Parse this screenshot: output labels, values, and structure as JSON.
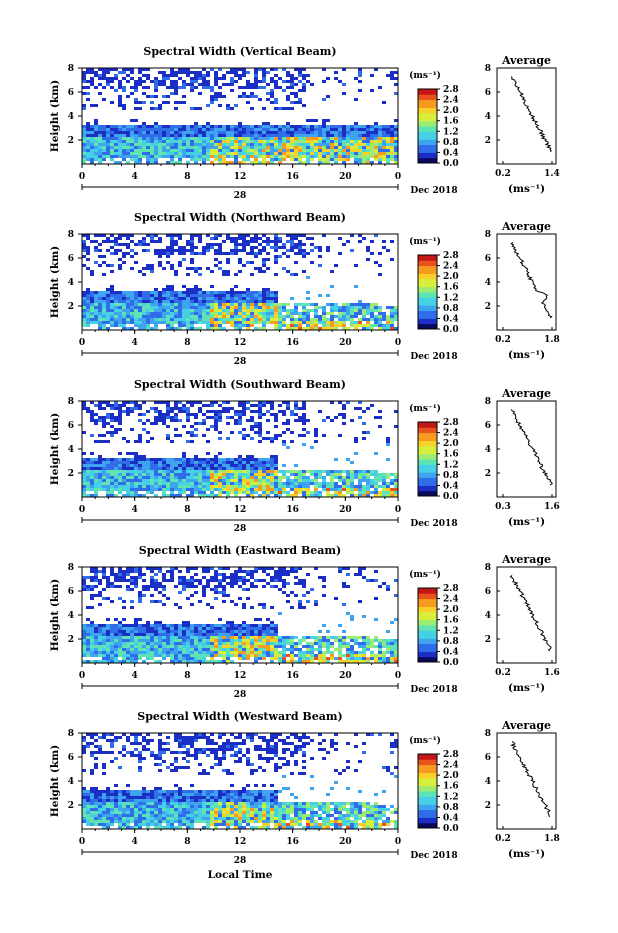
{
  "chart_data": [
    {
      "type": "heatmap",
      "title": "Spectral Width (Vertical Beam)",
      "ylabel": "Height (km)",
      "x_ticks": [
        "0",
        "4",
        "8",
        "12",
        "16",
        "20",
        "0"
      ],
      "y_ticks": [
        "2",
        "4",
        "6",
        "8"
      ],
      "date_day": "28",
      "date_label": "Dec 2018",
      "colorbar": {
        "unit": "(ms⁻¹)",
        "ticks": [
          "0.0",
          "0.4",
          "0.8",
          "1.2",
          "1.6",
          "2.0",
          "2.4",
          "2.8"
        ]
      },
      "average": {
        "title": "Average",
        "xlabel": "(ms⁻¹)",
        "x_ticks": [
          "0.2",
          "1.4"
        ],
        "y_ticks": [
          "2",
          "4",
          "6",
          "8"
        ]
      }
    },
    {
      "type": "heatmap",
      "title": "Spectral Width (Northward Beam)",
      "ylabel": "Height (km)",
      "x_ticks": [
        "0",
        "4",
        "8",
        "12",
        "16",
        "20",
        "0"
      ],
      "y_ticks": [
        "2",
        "4",
        "6",
        "8"
      ],
      "date_day": "28",
      "date_label": "Dec 2018",
      "colorbar": {
        "unit": "(ms⁻¹)",
        "ticks": [
          "0.0",
          "0.4",
          "0.8",
          "1.2",
          "1.6",
          "2.0",
          "2.4",
          "2.8"
        ]
      },
      "average": {
        "title": "Average",
        "xlabel": "(ms⁻¹)",
        "x_ticks": [
          "0.2",
          "1.8"
        ],
        "y_ticks": [
          "2",
          "4",
          "6",
          "8"
        ]
      }
    },
    {
      "type": "heatmap",
      "title": "Spectral Width (Southward Beam)",
      "ylabel": "Height (km)",
      "x_ticks": [
        "0",
        "4",
        "8",
        "12",
        "16",
        "20",
        "0"
      ],
      "y_ticks": [
        "2",
        "4",
        "6",
        "8"
      ],
      "date_day": "28",
      "date_label": "Dec 2018",
      "colorbar": {
        "unit": "(ms⁻¹)",
        "ticks": [
          "0.0",
          "0.4",
          "0.8",
          "1.2",
          "1.6",
          "2.0",
          "2.4",
          "2.8"
        ]
      },
      "average": {
        "title": "Average",
        "xlabel": "(ms⁻¹)",
        "x_ticks": [
          "0.3",
          "1.6"
        ],
        "y_ticks": [
          "2",
          "4",
          "6",
          "8"
        ]
      }
    },
    {
      "type": "heatmap",
      "title": "Spectral Width (Eastward Beam)",
      "ylabel": "Height (km)",
      "x_ticks": [
        "0",
        "4",
        "8",
        "12",
        "16",
        "20",
        "0"
      ],
      "y_ticks": [
        "2",
        "4",
        "6",
        "8"
      ],
      "date_day": "28",
      "date_label": "Dec 2018",
      "colorbar": {
        "unit": "(ms⁻¹)",
        "ticks": [
          "0.0",
          "0.4",
          "0.8",
          "1.2",
          "1.6",
          "2.0",
          "2.4",
          "2.8"
        ]
      },
      "average": {
        "title": "Average",
        "xlabel": "(ms⁻¹)",
        "x_ticks": [
          "0.2",
          "1.6"
        ],
        "y_ticks": [
          "2",
          "4",
          "6",
          "8"
        ]
      }
    },
    {
      "type": "heatmap",
      "title": "Spectral Width (Westward Beam)",
      "ylabel": "Height (km)",
      "x_ticks": [
        "0",
        "4",
        "8",
        "12",
        "16",
        "20",
        "0"
      ],
      "y_ticks": [
        "2",
        "4",
        "6",
        "8"
      ],
      "date_day": "28",
      "date_label": "Dec 2018",
      "colorbar": {
        "unit": "(ms⁻¹)",
        "ticks": [
          "0.0",
          "0.4",
          "0.8",
          "1.2",
          "1.6",
          "2.0",
          "2.4",
          "2.8"
        ]
      },
      "average": {
        "title": "Average",
        "xlabel": "(ms⁻¹)",
        "x_ticks": [
          "0.2",
          "1.8"
        ],
        "y_ticks": [
          "2",
          "4",
          "6",
          "8"
        ]
      }
    }
  ],
  "xlabel_common": "Local Time",
  "colors": {
    "jet": [
      "#0a0a5c",
      "#1b2fc4",
      "#2f6ee8",
      "#3ea4f0",
      "#45d0e6",
      "#5fe3b4",
      "#9cec74",
      "#d7ee3c",
      "#f7d12a",
      "#f79a22",
      "#e8521c",
      "#c41717"
    ],
    "background": "#ffffff",
    "axis": "#000000"
  }
}
